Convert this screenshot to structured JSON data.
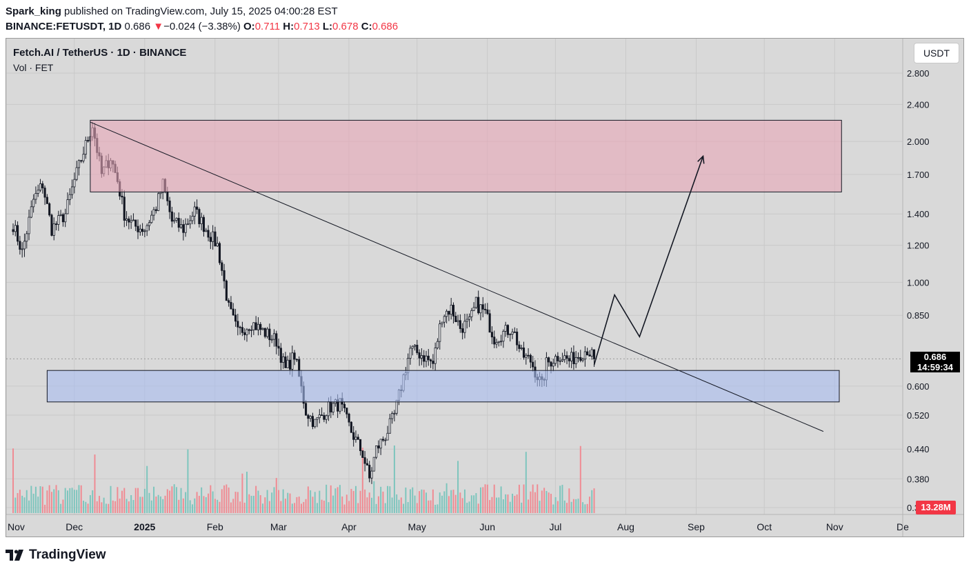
{
  "header": {
    "author": "Spark_king",
    "published": "published on TradingView.com, July 15, 2025 04:00:28 EST",
    "symbol": "BINANCE:FETUSDT, 1D",
    "last": "0.686",
    "change_arrow": "▼",
    "change": "−0.024 (−3.38%)",
    "o_label": "O:",
    "o": "0.711",
    "h_label": "H:",
    "h": "0.713",
    "l_label": "L:",
    "l": "0.678",
    "c_label": "C:",
    "c": "0.686"
  },
  "overlay": {
    "title": "Fetch.AI / TetherUS · 1D · BINANCE",
    "vol": "Vol · FET"
  },
  "currency_button": "USDT",
  "price_tag": {
    "price": "0.686",
    "countdown": "14:59:34"
  },
  "volume_tag": "13.28M",
  "footer": {
    "brand": "TradingView"
  },
  "colors": {
    "up": "#26a69a",
    "down": "#f23645",
    "resistance_zone": "#e8a7b8",
    "support_zone": "#a9bdf0",
    "background": "#d9d9d9"
  },
  "chart_data": {
    "type": "candlestick",
    "title": "Fetch.AI / TetherUS · 1D · BINANCE",
    "y_scale": "log",
    "ylim": [
      0.3,
      3.0
    ],
    "y_ticks": [
      2.8,
      2.4,
      2.0,
      1.7,
      1.4,
      1.2,
      1.0,
      0.85,
      0.6,
      0.52,
      0.44,
      0.38,
      0.33
    ],
    "y_tick_labels": [
      "2.800",
      "2.400",
      "2.000",
      "1.700",
      "1.400",
      "1.200",
      "1.000",
      "0.850",
      "0.600",
      "0.520",
      "0.440",
      "0.380",
      "0.330"
    ],
    "x_tick_labels": [
      "Nov",
      "Dec",
      "2025",
      "Feb",
      "Mar",
      "Apr",
      "May",
      "Jun",
      "Jul",
      "Aug",
      "Sep",
      "Oct",
      "Nov",
      "De"
    ],
    "x_range": [
      "2024-11-01",
      "2025-12-01"
    ],
    "price_path": [
      [
        "2024-11-01",
        1.33
      ],
      [
        "2024-11-05",
        1.16
      ],
      [
        "2024-11-10",
        1.5
      ],
      [
        "2024-11-14",
        1.62
      ],
      [
        "2024-11-18",
        1.3
      ],
      [
        "2024-11-24",
        1.4
      ],
      [
        "2024-11-28",
        1.65
      ],
      [
        "2024-12-02",
        1.9
      ],
      [
        "2024-12-06",
        2.17
      ],
      [
        "2024-12-10",
        1.7
      ],
      [
        "2024-12-14",
        1.85
      ],
      [
        "2024-12-17",
        1.65
      ],
      [
        "2024-12-20",
        1.4
      ],
      [
        "2024-12-24",
        1.32
      ],
      [
        "2024-12-29",
        1.3
      ],
      [
        "2025-01-03",
        1.45
      ],
      [
        "2025-01-06",
        1.62
      ],
      [
        "2025-01-10",
        1.35
      ],
      [
        "2025-01-15",
        1.3
      ],
      [
        "2025-01-20",
        1.42
      ],
      [
        "2025-01-25",
        1.3
      ],
      [
        "2025-01-30",
        1.2
      ],
      [
        "2025-02-02",
        1.0
      ],
      [
        "2025-02-04",
        0.88
      ],
      [
        "2025-02-08",
        0.78
      ],
      [
        "2025-02-14",
        0.82
      ],
      [
        "2025-02-20",
        0.78
      ],
      [
        "2025-02-25",
        0.75
      ],
      [
        "2025-03-01",
        0.65
      ],
      [
        "2025-03-05",
        0.7
      ],
      [
        "2025-03-10",
        0.53
      ],
      [
        "2025-03-14",
        0.5
      ],
      [
        "2025-03-20",
        0.54
      ],
      [
        "2025-03-25",
        0.55
      ],
      [
        "2025-03-30",
        0.48
      ],
      [
        "2025-04-04",
        0.43
      ],
      [
        "2025-04-07",
        0.38
      ],
      [
        "2025-04-10",
        0.44
      ],
      [
        "2025-04-14",
        0.47
      ],
      [
        "2025-04-18",
        0.52
      ],
      [
        "2025-04-21",
        0.6
      ],
      [
        "2025-04-25",
        0.72
      ],
      [
        "2025-04-30",
        0.7
      ],
      [
        "2025-05-05",
        0.67
      ],
      [
        "2025-05-09",
        0.85
      ],
      [
        "2025-05-13",
        0.88
      ],
      [
        "2025-05-17",
        0.8
      ],
      [
        "2025-05-21",
        0.82
      ],
      [
        "2025-05-24",
        0.9
      ],
      [
        "2025-05-28",
        0.86
      ],
      [
        "2025-06-01",
        0.76
      ],
      [
        "2025-06-05",
        0.78
      ],
      [
        "2025-06-09",
        0.8
      ],
      [
        "2025-06-13",
        0.7
      ],
      [
        "2025-06-17",
        0.68
      ],
      [
        "2025-06-22",
        0.6
      ],
      [
        "2025-06-24",
        0.67
      ],
      [
        "2025-06-30",
        0.7
      ],
      [
        "2025-07-04",
        0.68
      ],
      [
        "2025-07-08",
        0.7
      ],
      [
        "2025-07-12",
        0.72
      ],
      [
        "2025-07-15",
        0.686
      ]
    ],
    "volume_scale": "relative (0-1)",
    "zones": [
      {
        "name": "resistance",
        "from": "2024-12-05",
        "to": "2025-11-01",
        "low": 1.56,
        "high": 2.22
      },
      {
        "name": "support",
        "from": "2024-11-16",
        "to": "2025-10-31",
        "low": 0.555,
        "high": 0.648
      }
    ],
    "trendline": [
      [
        "2024-12-05",
        2.2
      ],
      [
        "2025-10-24",
        0.48
      ]
    ],
    "projection": [
      [
        "2025-07-15",
        0.666
      ],
      [
        "2025-07-24",
        0.94
      ],
      [
        "2025-08-04",
        0.765
      ],
      [
        "2025-09-01",
        1.86
      ]
    ],
    "last_price": 0.686
  }
}
